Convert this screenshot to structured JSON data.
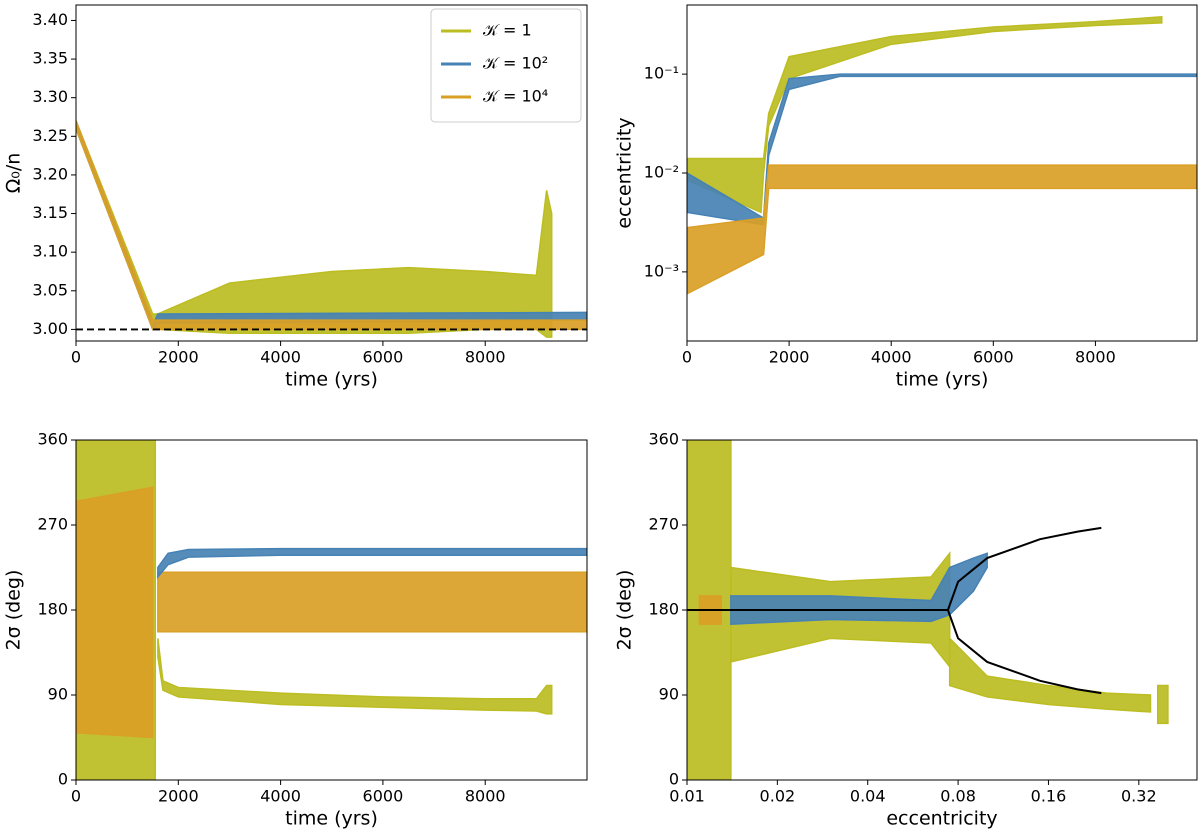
{
  "chart_data": [
    {
      "type": "band",
      "xlabel": "time  (yrs)",
      "ylabel": "Ω₀/n",
      "xlim": [
        0,
        9990
      ],
      "xticks": [
        0,
        2000,
        4000,
        6000,
        8000
      ],
      "ylim": [
        2.985,
        3.42
      ],
      "yticks": [
        {
          "value": 3.0,
          "label": "3.00"
        },
        3.05,
        {
          "value": 3.1,
          "label": "3.10"
        },
        3.15,
        {
          "value": 3.2,
          "label": "3.20"
        },
        3.25,
        {
          "value": 3.3,
          "label": "3.30"
        },
        3.35,
        {
          "value": 3.4,
          "label": "3.40"
        }
      ],
      "hline": 3.0,
      "legend": "upper right",
      "series": [
        {
          "name": "𝒦 = 1",
          "color": "#bcbd22",
          "parts": [
            {
              "x": [
                0,
                1500,
                1600,
                3000,
                5000,
                6500,
                8000,
                9000,
                9200,
                9300
              ],
              "upper": [
                3.27,
                3.02,
                3.02,
                3.06,
                3.075,
                3.08,
                3.075,
                3.07,
                3.18,
                3.15
              ],
              "lower": [
                3.26,
                3.0,
                3.0,
                2.995,
                2.995,
                2.995,
                3.0,
                3.0,
                2.99,
                2.99
              ]
            }
          ]
        },
        {
          "name": "𝒦 = 10²",
          "color": "#4682b4",
          "parts": [
            {
              "x": [
                0,
                1500,
                1600,
                9990
              ],
              "upper": [
                3.27,
                3.005,
                3.02,
                3.022
              ],
              "lower": [
                3.26,
                3.0,
                3.008,
                3.012
              ]
            }
          ]
        },
        {
          "name": "𝒦 = 10⁴",
          "color": "#daa026",
          "parts": [
            {
              "x": [
                0,
                1500,
                9990
              ],
              "upper": [
                3.27,
                3.012,
                3.012
              ],
              "lower": [
                3.26,
                3.0,
                3.0
              ]
            }
          ]
        }
      ]
    },
    {
      "type": "band",
      "xlabel": "time  (yrs)",
      "ylabel": "eccentricity",
      "ylog": true,
      "xlim": [
        0,
        9990
      ],
      "xticks": [
        0,
        2000,
        4000,
        6000,
        8000
      ],
      "ylim": [
        0.0002,
        0.5
      ],
      "yticks": [
        {
          "value": 0.001,
          "label": "10⁻³"
        },
        {
          "value": 0.01,
          "label": "10⁻²"
        },
        {
          "value": 0.1,
          "label": "10⁻¹"
        }
      ],
      "series": [
        {
          "color": "#bcbd22",
          "parts": [
            {
              "x": [
                0,
                1450,
                1500,
                1600,
                2000,
                4000,
                6000,
                8000,
                9300
              ],
              "upper": [
                0.014,
                0.014,
                0.014,
                0.04,
                0.15,
                0.24,
                0.3,
                0.34,
                0.38
              ],
              "lower": [
                0.0085,
                0.004,
                0.01,
                0.03,
                0.09,
                0.2,
                0.27,
                0.31,
                0.33
              ]
            }
          ]
        },
        {
          "color": "#4682b4",
          "parts": [
            {
              "x": [
                0,
                1500,
                1600,
                2000,
                3000,
                9990
              ],
              "upper": [
                0.01,
                0.0035,
                0.02,
                0.09,
                0.1,
                0.1
              ],
              "lower": [
                0.004,
                0.003,
                0.015,
                0.07,
                0.095,
                0.095
              ]
            }
          ]
        },
        {
          "color": "#daa026",
          "parts": [
            {
              "x": [
                0,
                1500,
                1600,
                9990
              ],
              "upper": [
                0.0028,
                0.0035,
                0.012,
                0.012
              ],
              "lower": [
                0.0006,
                0.0015,
                0.007,
                0.007
              ]
            }
          ]
        }
      ]
    },
    {
      "type": "band",
      "xlabel": "time  (yrs)",
      "ylabel": "2σ  (deg)",
      "xlim": [
        0,
        9990
      ],
      "xticks": [
        0,
        2000,
        4000,
        6000,
        8000
      ],
      "ylim": [
        0,
        360
      ],
      "yticks": [
        0,
        90,
        180,
        270,
        360
      ],
      "series": [
        {
          "color": "#bcbd22",
          "parts": [
            {
              "x": [
                0,
                1550
              ],
              "upper": [
                360,
                360
              ],
              "lower": [
                0,
                0
              ]
            },
            {
              "x": [
                1600,
                1700,
                2000,
                4000,
                6000,
                8000,
                9000,
                9200,
                9300
              ],
              "upper": [
                150,
                105,
                98,
                92,
                88,
                86,
                86,
                100,
                100
              ],
              "lower": [
                130,
                95,
                88,
                80,
                77,
                74,
                73,
                70,
                70
              ]
            }
          ]
        },
        {
          "color": "#daa026",
          "parts": [
            {
              "x": [
                0,
                1500
              ],
              "upper": [
                295,
                310
              ],
              "lower": [
                50,
                45
              ]
            },
            {
              "x": [
                1600,
                9990
              ],
              "upper": [
                220,
                220
              ],
              "lower": [
                157,
                157
              ]
            }
          ]
        },
        {
          "color": "#4682b4",
          "parts": [
            {
              "x": [
                1600,
                1800,
                2200,
                4000,
                9990
              ],
              "upper": [
                225,
                240,
                244,
                245,
                245
              ],
              "lower": [
                215,
                228,
                236,
                238,
                238
              ]
            }
          ]
        }
      ]
    },
    {
      "type": "band",
      "xlabel": "eccentricity",
      "ylabel": "2σ  (deg)",
      "xlog": true,
      "xlim": [
        0.01,
        0.5
      ],
      "xticks": [
        0.01,
        0.02,
        0.04,
        0.08,
        0.16,
        0.32
      ],
      "ylim": [
        0,
        360
      ],
      "yticks": [
        0,
        90,
        180,
        270,
        360
      ],
      "series": [
        {
          "color": "#bcbd22",
          "parts": [
            {
              "x": [
                0.01,
                0.014
              ],
              "upper": [
                360,
                360
              ],
              "lower": [
                0,
                0
              ]
            },
            {
              "x": [
                0.014,
                0.03,
                0.065,
                0.075
              ],
              "upper": [
                225,
                210,
                215,
                240
              ],
              "lower": [
                125,
                150,
                145,
                120
              ]
            },
            {
              "x": [
                0.075,
                0.1,
                0.16,
                0.25,
                0.35
              ],
              "upper": [
                150,
                110,
                100,
                92,
                90
              ],
              "lower": [
                100,
                88,
                80,
                75,
                72
              ]
            },
            {
              "x": [
                0.37,
                0.4
              ],
              "upper": [
                100,
                100
              ],
              "lower": [
                60,
                60
              ]
            }
          ]
        },
        {
          "color": "#4682b4",
          "parts": [
            {
              "x": [
                0.014,
                0.03,
                0.065,
                0.075,
                0.09,
                0.1
              ],
              "upper": [
                195,
                195,
                190,
                225,
                235,
                240
              ],
              "lower": [
                165,
                170,
                168,
                175,
                200,
                225
              ]
            }
          ]
        },
        {
          "color": "#daa026",
          "parts": [
            {
              "x": [
                0.011,
                0.013
              ],
              "upper": [
                195,
                195
              ],
              "lower": [
                165,
                165
              ]
            }
          ]
        }
      ],
      "lines": [
        {
          "color": "#000000",
          "x": [
            0.01,
            0.074
          ],
          "values": [
            180,
            180
          ]
        },
        {
          "color": "#000000",
          "x": [
            0.074,
            0.08,
            0.1,
            0.15,
            0.2,
            0.24
          ],
          "values": [
            180,
            210,
            235,
            255,
            263,
            267
          ]
        },
        {
          "color": "#000000",
          "x": [
            0.074,
            0.08,
            0.1,
            0.15,
            0.2,
            0.24
          ],
          "values": [
            180,
            150,
            125,
            105,
            96,
            92
          ]
        }
      ]
    }
  ]
}
